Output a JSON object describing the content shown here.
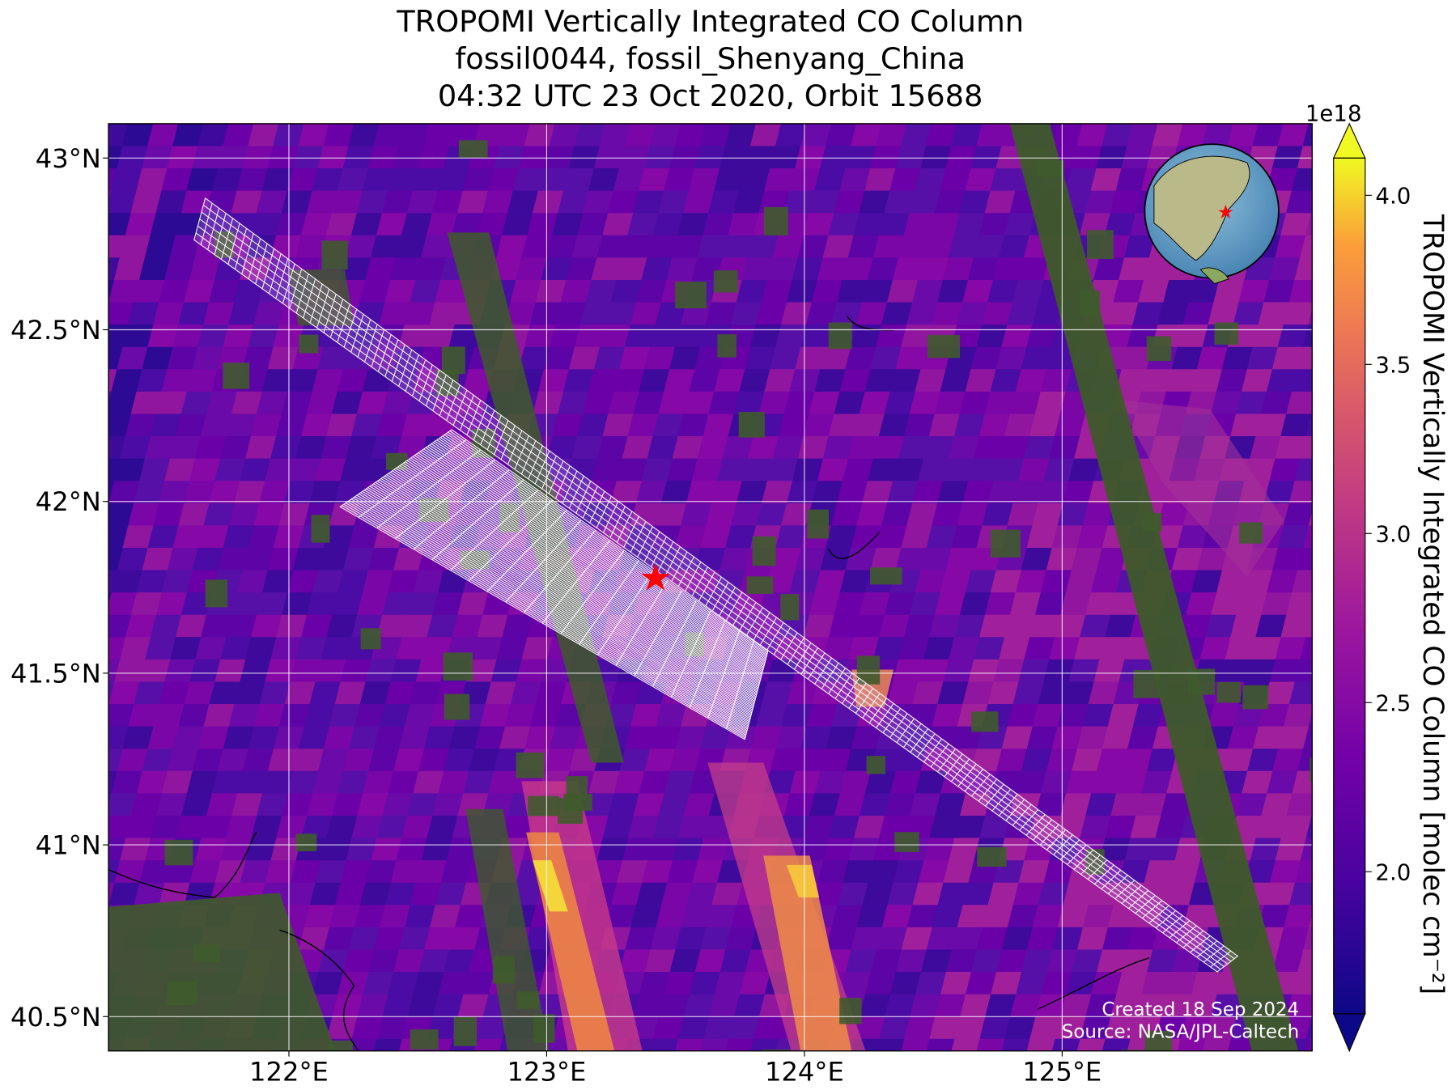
{
  "title": [
    "TROPOMI Vertically Integrated CO Column",
    "fossil0044, fossil_Shenyang_China",
    "04:32 UTC 23 Oct 2020, Orbit 15688"
  ],
  "map": {
    "xlim": [
      121.3,
      125.97
    ],
    "ylim": [
      40.4,
      43.1
    ],
    "xticks": [
      {
        "value": 122,
        "label": "122°E"
      },
      {
        "value": 123,
        "label": "123°E"
      },
      {
        "value": 124,
        "label": "124°E"
      },
      {
        "value": 125,
        "label": "125°E"
      }
    ],
    "yticks": [
      {
        "value": 40.5,
        "label": "40.5°N"
      },
      {
        "value": 41,
        "label": "41°N"
      },
      {
        "value": 41.5,
        "label": "41.5°N"
      },
      {
        "value": 42,
        "label": "42°N"
      },
      {
        "value": 42.5,
        "label": "42.5°N"
      },
      {
        "value": 43,
        "label": "43°N"
      }
    ],
    "grid": true
  },
  "colorbar": {
    "label": "TROPOMI Vertically Integrated CO Column [molec cm⁻²]",
    "offset_label": "1e18",
    "lim": [
      1.58,
      4.11
    ],
    "ticks": [
      {
        "value": 2,
        "label": "2.0"
      },
      {
        "value": 2.5,
        "label": "2.5"
      },
      {
        "value": 3,
        "label": "3.0"
      },
      {
        "value": 3.5,
        "label": "3.5"
      },
      {
        "value": 4,
        "label": "4.0"
      }
    ]
  },
  "credits": [
    "Created 18 Sep 2024",
    "Source: NASA/JPL-Caltech"
  ]
}
